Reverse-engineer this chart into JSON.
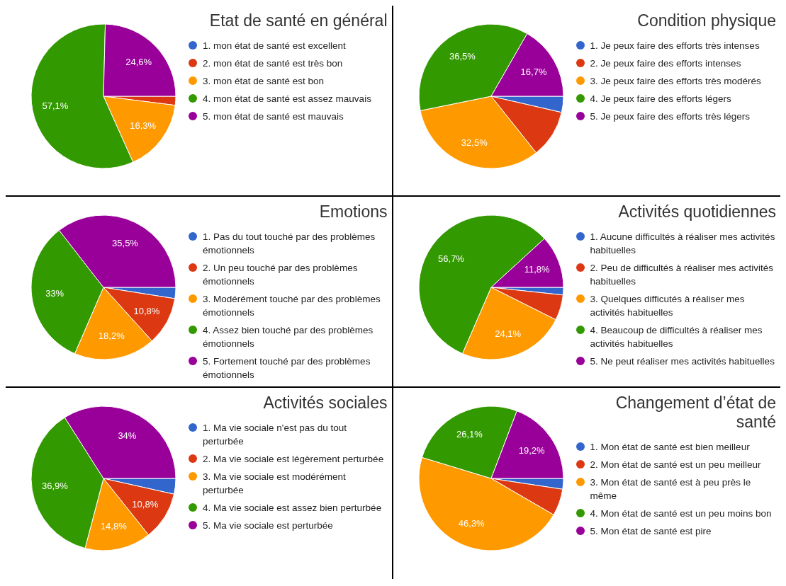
{
  "chart_data": [
    {
      "type": "pie",
      "title": "Etat de santé en général",
      "legend": "right",
      "categories": [
        "1. mon état de santé est excellent",
        "2. mon état de santé est très bon",
        "3. mon état de santé est bon",
        "4. mon état de santé est assez mauvais",
        "5. mon état de santé est mauvais"
      ],
      "values": [
        0,
        2,
        16.3,
        57.1,
        24.6
      ],
      "value_labels": [
        null,
        null,
        "16,3%",
        "57,1%",
        "24,6%"
      ],
      "colors": [
        "#3366cc",
        "#dc3912",
        "#ff9900",
        "#339900",
        "#990099"
      ]
    },
    {
      "type": "pie",
      "title": "Condition physique",
      "legend": "right",
      "categories": [
        "1. Je peux faire des efforts très intenses",
        "2. Je peux faire des efforts intenses",
        "3. Je peux faire des efforts très modérés",
        "4. Je peux faire des efforts légers",
        "5. Je peux faire des efforts très légers"
      ],
      "values": [
        3.6,
        10.7,
        32.5,
        36.5,
        16.7
      ],
      "value_labels": [
        null,
        null,
        "32,5%",
        "36,5%",
        "16,7%"
      ],
      "colors": [
        "#3366cc",
        "#dc3912",
        "#ff9900",
        "#339900",
        "#990099"
      ]
    },
    {
      "type": "pie",
      "title": "Emotions",
      "legend": "right",
      "categories": [
        "1. Pas du tout touché par des problèmes émotionnels",
        "2. Un peu touché par des problèmes émotionnels",
        "3. Modérément touché par des problèmes émotionnels",
        "4. Assez bien touché par des problèmes émotionnels",
        "5. Fortement touché par des problèmes émotionnels"
      ],
      "values": [
        2.5,
        10.8,
        18.2,
        33,
        35.5
      ],
      "value_labels": [
        null,
        "10,8%",
        "18,2%",
        "33%",
        "35,5%"
      ],
      "colors": [
        "#3366cc",
        "#dc3912",
        "#ff9900",
        "#339900",
        "#990099"
      ]
    },
    {
      "type": "pie",
      "title": "Activités quotidiennes",
      "legend": "right",
      "categories": [
        "1. Aucune difficultés à réaliser mes activités habituelles",
        "2. Peu de difficultés à réaliser mes activités habituelles",
        "3. Quelques difficutés à réaliser mes activités habituelles",
        "4. Beaucoup de difficultés à réaliser mes activités habituelles",
        "5. Ne peut réaliser mes activités habituelles"
      ],
      "values": [
        1.7,
        5.7,
        24.1,
        56.7,
        11.8
      ],
      "value_labels": [
        null,
        null,
        "24,1%",
        "56,7%",
        "11,8%"
      ],
      "colors": [
        "#3366cc",
        "#dc3912",
        "#ff9900",
        "#339900",
        "#990099"
      ]
    },
    {
      "type": "pie",
      "title": "Activités sociales",
      "legend": "right",
      "categories": [
        "1. Ma vie sociale n'est pas du tout perturbée",
        "2. Ma vie sociale est légèrement perturbée",
        "3. Ma vie sociale est modérément perturbée",
        "4. Ma vie sociale est assez bien perturbée",
        "5. Ma vie sociale est perturbée"
      ],
      "values": [
        3.5,
        10.8,
        14.8,
        36.9,
        34
      ],
      "value_labels": [
        null,
        "10,8%",
        "14,8%",
        "36,9%",
        "34%"
      ],
      "colors": [
        "#3366cc",
        "#dc3912",
        "#ff9900",
        "#339900",
        "#990099"
      ]
    },
    {
      "type": "pie",
      "title": "Changement d’état de santé",
      "legend": "right",
      "categories": [
        "1. Mon état de santé est bien meilleur",
        "2. Mon état de santé est un peu meilleur",
        "3. Mon état de santé est à peu près le même",
        "4. Mon état de santé est un peu moins bon",
        "5. Mon état de santé est pire"
      ],
      "values": [
        2.4,
        6,
        46.3,
        26.1,
        19.2
      ],
      "value_labels": [
        null,
        null,
        "46,3%",
        "26,1%",
        "19,2%"
      ],
      "colors": [
        "#3366cc",
        "#dc3912",
        "#ff9900",
        "#339900",
        "#990099"
      ]
    }
  ]
}
